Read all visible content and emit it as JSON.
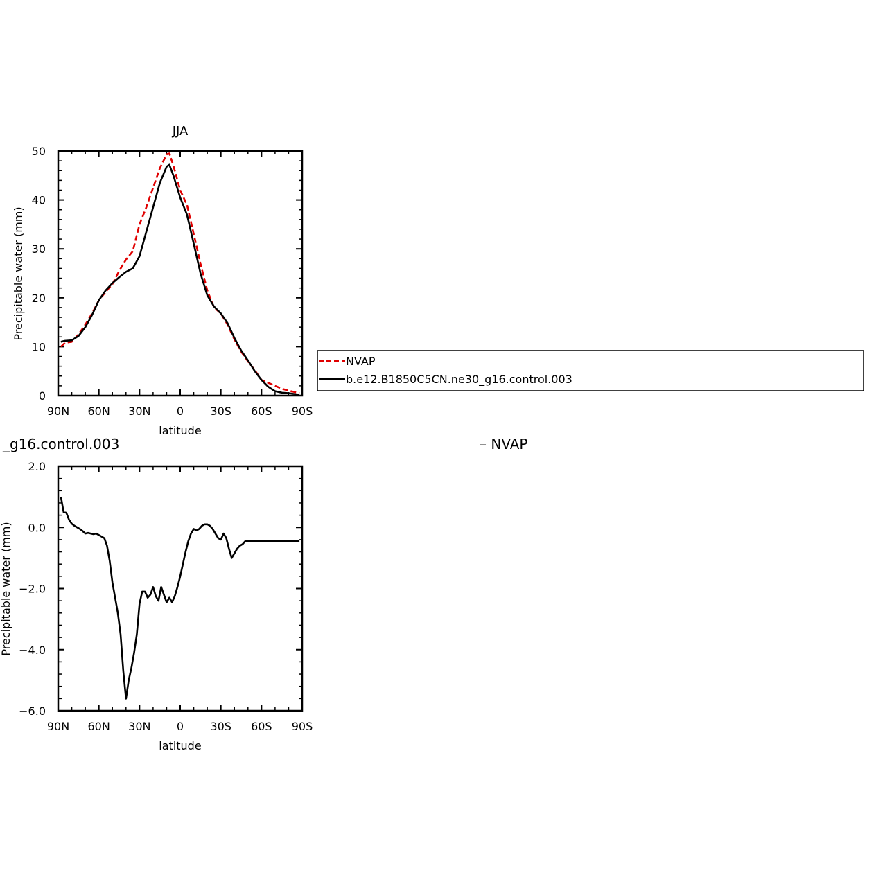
{
  "chart_data": [
    {
      "type": "line",
      "title": "JJA",
      "xlabel": "latitude",
      "ylabel": "Precipitable water (mm)",
      "xlim": [
        -90,
        90
      ],
      "ylim": [
        0,
        50
      ],
      "x_ticks": [
        {
          "value": -90,
          "label": "90N"
        },
        {
          "value": -60,
          "label": "60N"
        },
        {
          "value": -30,
          "label": "30N"
        },
        {
          "value": 0,
          "label": "0"
        },
        {
          "value": 30,
          "label": "30S"
        },
        {
          "value": 60,
          "label": "60S"
        },
        {
          "value": 90,
          "label": "90S"
        }
      ],
      "y_ticks": [
        {
          "value": 0,
          "label": "0"
        },
        {
          "value": 10,
          "label": "10"
        },
        {
          "value": 20,
          "label": "20"
        },
        {
          "value": 30,
          "label": "30"
        },
        {
          "value": 40,
          "label": "40"
        },
        {
          "value": 50,
          "label": "50"
        }
      ],
      "legend": {
        "placement": "right",
        "entries": [
          {
            "label": "NVAP",
            "color": "#e00000",
            "dash": "dashed"
          },
          {
            "label": "b.e12.B1850C5CN.ne30_g16.control.003",
            "color": "#000000",
            "dash": "solid"
          }
        ]
      },
      "series": [
        {
          "name": "NVAP",
          "color": "#e00000",
          "dash": "dashed",
          "x": [
            -88,
            -85,
            -80,
            -75,
            -70,
            -65,
            -60,
            -55,
            -50,
            -45,
            -40,
            -35,
            -30,
            -25,
            -20,
            -15,
            -10,
            -8,
            -5,
            0,
            5,
            10,
            15,
            20,
            25,
            30,
            35,
            40,
            45,
            50,
            55,
            60,
            65,
            70,
            75,
            80,
            85,
            88
          ],
          "y": [
            10.0,
            10.8,
            11.0,
            12.5,
            14.5,
            16.8,
            19.5,
            21.2,
            22.8,
            25.5,
            27.8,
            29.5,
            35.0,
            38.5,
            42.5,
            46.5,
            49.3,
            49.5,
            47.0,
            42.0,
            39.0,
            33.0,
            27.0,
            21.5,
            18.0,
            16.8,
            14.5,
            11.5,
            9.0,
            7.0,
            5.2,
            3.2,
            2.6,
            2.0,
            1.4,
            1.0,
            0.7,
            0.5
          ]
        },
        {
          "name": "b.e12.B1850C5CN.ne30_g16.control.003",
          "color": "#000000",
          "dash": "solid",
          "x": [
            -88,
            -85,
            -80,
            -75,
            -70,
            -65,
            -60,
            -55,
            -50,
            -45,
            -40,
            -35,
            -30,
            -25,
            -20,
            -15,
            -10,
            -8,
            -5,
            0,
            5,
            10,
            15,
            20,
            25,
            30,
            35,
            40,
            45,
            50,
            55,
            60,
            65,
            70,
            75,
            80,
            85,
            88
          ],
          "y": [
            11.0,
            11.2,
            11.3,
            12.2,
            14.0,
            16.5,
            19.5,
            21.5,
            23.0,
            24.2,
            25.3,
            26.0,
            28.5,
            33.5,
            38.5,
            43.5,
            46.8,
            47.2,
            45.0,
            40.5,
            37.0,
            31.0,
            25.0,
            20.5,
            18.2,
            16.8,
            14.8,
            11.8,
            9.2,
            7.2,
            5.0,
            3.2,
            1.8,
            0.9,
            0.6,
            0.5,
            0.3,
            0.2
          ]
        }
      ]
    },
    {
      "type": "line",
      "title": "_g16.control.003",
      "title_right": "– NVAP",
      "xlabel": "latitude",
      "ylabel": "Precipitable water (mm)",
      "xlim": [
        -90,
        90
      ],
      "ylim": [
        -6,
        2
      ],
      "x_ticks": [
        {
          "value": -90,
          "label": "90N"
        },
        {
          "value": -60,
          "label": "60N"
        },
        {
          "value": -30,
          "label": "30N"
        },
        {
          "value": 0,
          "label": "0"
        },
        {
          "value": 30,
          "label": "30S"
        },
        {
          "value": 60,
          "label": "60S"
        },
        {
          "value": 90,
          "label": "90S"
        }
      ],
      "y_ticks": [
        {
          "value": -6,
          "label": "−6.0"
        },
        {
          "value": -4,
          "label": "−4.0"
        },
        {
          "value": -2,
          "label": "−2.0"
        },
        {
          "value": 0,
          "label": "0.0"
        },
        {
          "value": 2,
          "label": "2.0"
        }
      ],
      "series": [
        {
          "color": "#000000",
          "dash": "solid",
          "x": [
            -88,
            -86,
            -84,
            -82,
            -80,
            -78,
            -76,
            -74,
            -72,
            -70,
            -68,
            -66,
            -64,
            -62,
            -60,
            -58,
            -56,
            -54,
            -52,
            -50,
            -48,
            -46,
            -44,
            -42,
            -40,
            -38,
            -36,
            -34,
            -32,
            -30,
            -28,
            -26,
            -24,
            -22,
            -20,
            -18,
            -16,
            -14,
            -12,
            -10,
            -8,
            -6,
            -4,
            -2,
            0,
            2,
            4,
            6,
            8,
            10,
            12,
            14,
            16,
            18,
            20,
            22,
            24,
            26,
            28,
            30,
            32,
            34,
            36,
            38,
            40,
            42,
            44,
            46,
            48,
            50,
            52,
            54,
            56,
            58,
            60,
            62,
            64,
            66,
            68,
            70,
            72,
            74,
            76,
            78,
            80,
            82,
            84,
            86,
            88
          ],
          "y": [
            1.0,
            0.5,
            0.48,
            0.25,
            0.12,
            0.05,
            0.0,
            -0.05,
            -0.12,
            -0.2,
            -0.18,
            -0.2,
            -0.22,
            -0.2,
            -0.25,
            -0.3,
            -0.35,
            -0.6,
            -1.1,
            -1.8,
            -2.3,
            -2.8,
            -3.5,
            -4.7,
            -5.6,
            -5.0,
            -4.6,
            -4.1,
            -3.5,
            -2.5,
            -2.1,
            -2.1,
            -2.3,
            -2.2,
            -1.95,
            -2.25,
            -2.4,
            -1.95,
            -2.2,
            -2.45,
            -2.3,
            -2.45,
            -2.25,
            -1.95,
            -1.6,
            -1.2,
            -0.8,
            -0.45,
            -0.2,
            -0.05,
            -0.1,
            -0.05,
            0.05,
            0.1,
            0.1,
            0.05,
            -0.05,
            -0.2,
            -0.35,
            -0.4,
            -0.2,
            -0.35,
            -0.7,
            -1.0,
            -0.85,
            -0.7,
            -0.6,
            -0.55,
            -0.45,
            -0.45,
            -0.45,
            -0.45,
            -0.45,
            -0.45,
            -0.45,
            -0.45,
            -0.45,
            -0.45,
            -0.45,
            -0.45,
            -0.45,
            -0.45,
            -0.45,
            -0.45,
            -0.45,
            -0.45,
            -0.45,
            -0.45,
            -0.45
          ]
        }
      ]
    }
  ]
}
